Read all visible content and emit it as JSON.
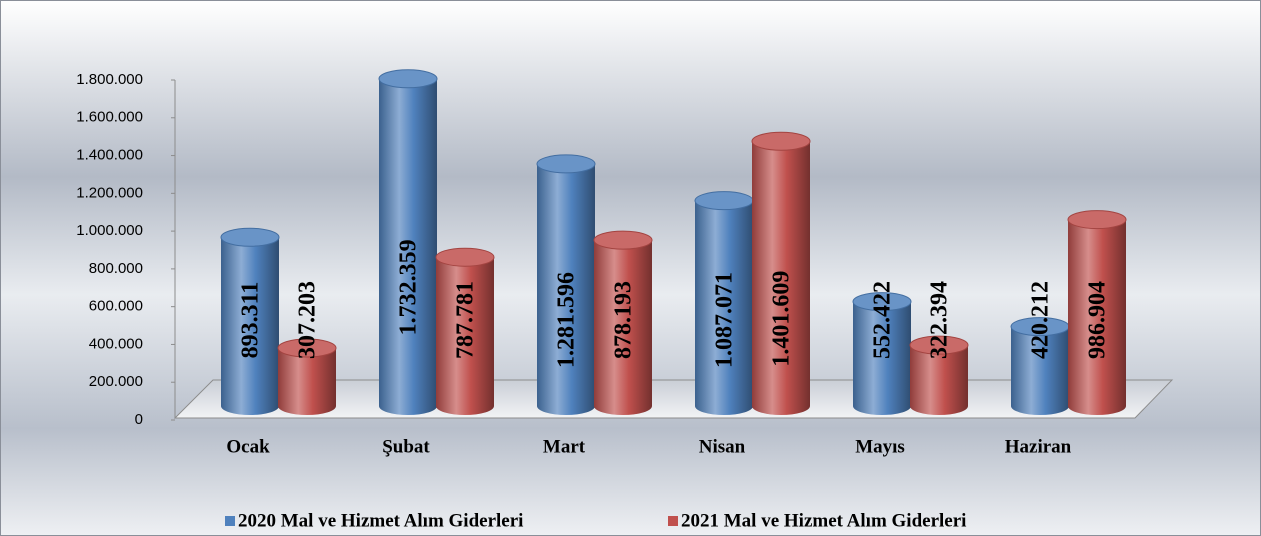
{
  "chart_data": {
    "type": "bar",
    "categories": [
      "Ocak",
      "Şubat",
      "Mart",
      "Nisan",
      "Mayıs",
      "Haziran"
    ],
    "series": [
      {
        "name": "2020 Mal ve Hizmet Alım Giderleri",
        "color": "#4f81bd",
        "values": [
          893311,
          1732359,
          1281596,
          1087071,
          552422,
          420212
        ],
        "value_labels": [
          "893.311",
          "1.732.359",
          "1.281.596",
          "1.087.071",
          "552.422",
          "420.212"
        ]
      },
      {
        "name": "2021 Mal ve Hizmet Alım Giderleri",
        "color": "#c0504d",
        "values": [
          307203,
          787781,
          878193,
          1401609,
          322394,
          986904
        ],
        "value_labels": [
          "307.203",
          "787.781",
          "878.193",
          "1.401.609",
          "322.394",
          "986.904"
        ]
      }
    ],
    "ylim": [
      0,
      1800000
    ],
    "yticks": [
      0,
      {
        "value": 200000,
        "label": "200.000"
      },
      {
        "value": 400000,
        "label": "400.000"
      },
      {
        "value": 600000,
        "label": "600.000"
      },
      {
        "value": 800000,
        "label": "800.000"
      },
      {
        "value": 1000000,
        "label": "1.000.000"
      },
      {
        "value": 1200000,
        "label": "1.200.000"
      },
      {
        "value": 1400000,
        "label": "1.400.000"
      },
      {
        "value": 1600000,
        "label": "1.600.000"
      },
      {
        "value": 1800000,
        "label": "1.800.000"
      }
    ],
    "legend": "bottom"
  }
}
